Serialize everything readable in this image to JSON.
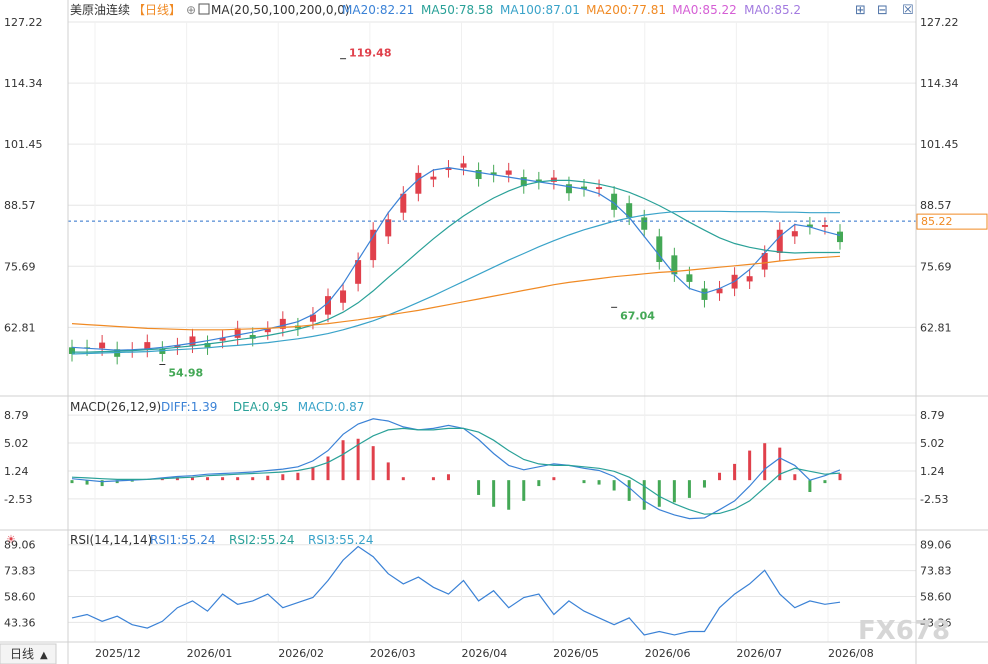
{
  "header": {
    "instrument": "美原油连续",
    "period_label": "【日线】",
    "ma_params": "MA(20,50,100,200,0,0)",
    "ma_readouts": [
      {
        "label": "MA20:82.21",
        "color": "#3b82d6"
      },
      {
        "label": "MA50:78.58",
        "color": "#2aa198"
      },
      {
        "label": "MA100:87.01",
        "color": "#3aa3c9"
      },
      {
        "label": "MA200:77.81",
        "color": "#f08a24"
      },
      {
        "label": "MA0:85.22",
        "color": "#d55fd5"
      },
      {
        "label": "MA0:85.2",
        "color": "#a37be0"
      }
    ]
  },
  "macd_header": {
    "params": "MACD(26,12,9)",
    "readouts": [
      {
        "label": "DIFF:1.39",
        "color": "#3b82d6"
      },
      {
        "label": "DEA:0.95",
        "color": "#2aa198"
      },
      {
        "label": "MACD:0.87",
        "color": "#3aa3c9"
      }
    ]
  },
  "rsi_header": {
    "params": "RSI(14,14,14)",
    "readouts": [
      {
        "label": "RSI1:55.24",
        "color": "#3b82d6"
      },
      {
        "label": "RSI2:55.24",
        "color": "#2aa198"
      },
      {
        "label": "RSI3:55.24",
        "color": "#3aa3c9"
      }
    ]
  },
  "footer": {
    "period_button": "日线",
    "watermark": "FX678"
  },
  "colors": {
    "up": "#e0404b",
    "down": "#44a856",
    "grid": "#e6e6e6",
    "axis_text": "#333333",
    "last_price": "#f08a24"
  },
  "chart_data": [
    {
      "type": "candlestick",
      "title": "美原油连续",
      "x_tick_labels": [
        "2025/12",
        "2026/01",
        "2026/02",
        "2026/03",
        "2026/04",
        "2026/05",
        "2026/06",
        "2026/07",
        "2026/08"
      ],
      "y_tick_labels": [
        "127.22",
        "114.34",
        "101.45",
        "88.57",
        "75.69",
        "62.81"
      ],
      "ylim": [
        49.6,
        127.22
      ],
      "last_price": "85.22",
      "annotations": [
        {
          "text": "119.48",
          "value": 119.48,
          "kind": "high"
        },
        {
          "text": "67.04",
          "value": 67.04,
          "kind": "low"
        },
        {
          "text": "54.98",
          "value": 54.98,
          "kind": "low"
        }
      ],
      "series": [
        {
          "name": "MA20",
          "color": "#3b82d6",
          "values": [
            58.6,
            58.4,
            58.2,
            58.0,
            58.1,
            58.3,
            58.6,
            59.0,
            59.5,
            60.0,
            60.6,
            61.2,
            61.8,
            62.5,
            63.2,
            64.0,
            65.5,
            68.0,
            72.0,
            77.0,
            82.0,
            87.0,
            91.0,
            94.0,
            96.0,
            96.5,
            96.0,
            95.5,
            95.0,
            94.5,
            94.0,
            93.5,
            93.0,
            92.5,
            92.0,
            91.0,
            89.0,
            86.0,
            82.0,
            78.0,
            74.0,
            71.0,
            70.0,
            71.0,
            72.5,
            75.0,
            78.5,
            82.0,
            84.5,
            84.0,
            83.0,
            82.2
          ]
        },
        {
          "name": "MA50",
          "color": "#2aa198",
          "values": [
            57.6,
            57.6,
            57.7,
            57.8,
            57.9,
            58.1,
            58.3,
            58.6,
            58.9,
            59.3,
            59.7,
            60.2,
            60.6,
            61.1,
            61.7,
            62.4,
            63.3,
            64.5,
            66.0,
            68.0,
            70.5,
            73.3,
            76.0,
            78.8,
            81.5,
            84.0,
            86.3,
            88.3,
            90.1,
            91.6,
            92.8,
            93.5,
            93.8,
            93.8,
            93.5,
            93.0,
            92.3,
            91.3,
            90.0,
            88.5,
            86.8,
            85.0,
            83.3,
            81.7,
            80.5,
            79.7,
            79.1,
            78.7,
            78.5,
            78.6,
            78.6,
            78.6
          ]
        },
        {
          "name": "MA100",
          "color": "#3aa3c9",
          "values": [
            57.2,
            57.3,
            57.4,
            57.5,
            57.6,
            57.7,
            57.9,
            58.1,
            58.3,
            58.5,
            58.8,
            59.0,
            59.3,
            59.6,
            60.0,
            60.4,
            60.9,
            61.5,
            62.3,
            63.2,
            64.2,
            65.4,
            66.7,
            68.1,
            69.5,
            71.0,
            72.5,
            74.0,
            75.5,
            77.0,
            78.4,
            79.8,
            81.1,
            82.3,
            83.4,
            84.3,
            85.2,
            85.9,
            86.5,
            86.9,
            87.2,
            87.3,
            87.3,
            87.3,
            87.2,
            87.2,
            87.2,
            87.1,
            87.1,
            87.0,
            87.0,
            87.0
          ]
        },
        {
          "name": "MA200",
          "color": "#f08a24",
          "values": [
            63.6,
            63.4,
            63.2,
            63.0,
            62.8,
            62.6,
            62.5,
            62.4,
            62.3,
            62.3,
            62.3,
            62.4,
            62.5,
            62.6,
            62.8,
            63.0,
            63.3,
            63.6,
            64.0,
            64.4,
            64.9,
            65.4,
            65.9,
            66.4,
            67.0,
            67.6,
            68.2,
            68.8,
            69.4,
            70.0,
            70.6,
            71.2,
            71.8,
            72.3,
            72.7,
            73.1,
            73.5,
            73.8,
            74.1,
            74.4,
            74.6,
            74.9,
            75.2,
            75.5,
            75.8,
            76.1,
            76.4,
            76.8,
            77.1,
            77.4,
            77.6,
            77.8
          ]
        }
      ]
    },
    {
      "type": "bar",
      "title": "MACD(26,12,9)",
      "x_tick_labels": [
        "2025/12",
        "2026/01",
        "2026/02",
        "2026/03",
        "2026/04",
        "2026/05",
        "2026/06",
        "2026/07",
        "2026/08"
      ],
      "y_tick_labels": [
        "8.79",
        "5.02",
        "1.24",
        "-2.53"
      ],
      "ylim": [
        -6.2,
        10.3
      ],
      "series": [
        {
          "name": "DIFF",
          "color": "#3b82d6",
          "values": [
            0.2,
            0.0,
            -0.2,
            -0.1,
            0.0,
            0.1,
            0.3,
            0.5,
            0.6,
            0.8,
            0.9,
            1.0,
            1.1,
            1.3,
            1.5,
            1.8,
            2.6,
            4.0,
            6.2,
            7.6,
            8.3,
            8.0,
            7.2,
            6.8,
            7.0,
            7.4,
            7.0,
            5.5,
            3.6,
            2.0,
            1.4,
            1.8,
            2.2,
            2.0,
            1.6,
            1.3,
            0.5,
            -1.0,
            -2.8,
            -4.0,
            -4.7,
            -5.2,
            -5.1,
            -4.0,
            -2.8,
            -0.8,
            1.5,
            3.0,
            2.0,
            0.0,
            0.6,
            1.39
          ]
        },
        {
          "name": "DEA",
          "color": "#2aa198",
          "values": [
            0.4,
            0.3,
            0.2,
            0.1,
            0.1,
            0.1,
            0.2,
            0.3,
            0.4,
            0.6,
            0.7,
            0.8,
            0.9,
            1.0,
            1.1,
            1.3,
            1.7,
            2.4,
            3.5,
            4.8,
            6.0,
            6.8,
            7.0,
            6.8,
            6.8,
            7.0,
            7.0,
            6.5,
            5.4,
            4.0,
            2.8,
            2.2,
            2.0,
            2.0,
            1.8,
            1.6,
            1.2,
            0.4,
            -0.8,
            -2.2,
            -3.2,
            -4.0,
            -4.6,
            -4.5,
            -3.9,
            -2.8,
            -1.0,
            0.8,
            1.6,
            1.2,
            0.8,
            0.95
          ]
        }
      ],
      "histogram": [
        -0.4,
        -0.6,
        -0.8,
        -0.4,
        -0.2,
        0.0,
        0.2,
        0.4,
        0.4,
        0.4,
        0.4,
        0.4,
        0.4,
        0.6,
        0.8,
        1.0,
        1.8,
        3.2,
        5.4,
        5.6,
        4.6,
        2.4,
        0.4,
        0.0,
        0.4,
        0.8,
        0.0,
        -2.0,
        -3.6,
        -4.0,
        -2.8,
        -0.8,
        0.4,
        0.0,
        -0.4,
        -0.6,
        -1.4,
        -2.8,
        -4.0,
        -3.6,
        -3.0,
        -2.4,
        -1.0,
        1.0,
        2.2,
        4.0,
        5.0,
        4.4,
        0.8,
        -1.6,
        -0.4,
        0.87
      ]
    },
    {
      "type": "line",
      "title": "RSI(14,14,14)",
      "x_tick_labels": [
        "2025/12",
        "2026/01",
        "2026/02",
        "2026/03",
        "2026/04",
        "2026/05",
        "2026/06",
        "2026/07",
        "2026/08"
      ],
      "y_tick_labels": [
        "89.06",
        "73.83",
        "58.60",
        "43.36"
      ],
      "ylim": [
        33,
        93
      ],
      "series": [
        {
          "name": "RSI",
          "color": "#3b82d6",
          "values": [
            46,
            48,
            44,
            47,
            42,
            40,
            44,
            52,
            56,
            50,
            60,
            54,
            56,
            60,
            52,
            55,
            58,
            68,
            80,
            88,
            82,
            72,
            66,
            70,
            64,
            60,
            68,
            56,
            62,
            52,
            58,
            60,
            48,
            56,
            50,
            46,
            42,
            46,
            36,
            38,
            36,
            38,
            38,
            52,
            60,
            66,
            74,
            60,
            52,
            56,
            54,
            55.24
          ]
        }
      ]
    }
  ]
}
